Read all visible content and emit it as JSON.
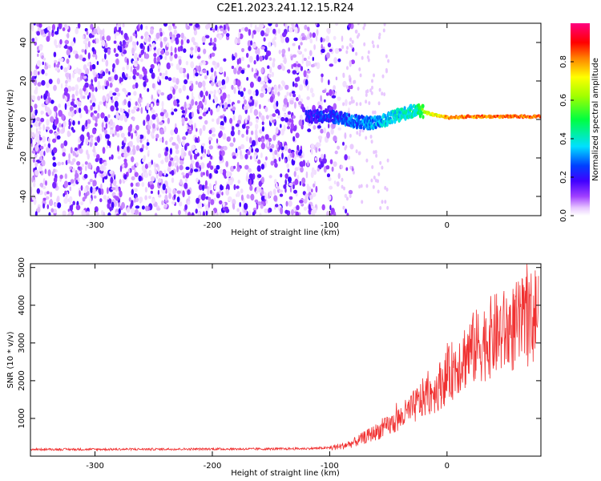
{
  "title": "C2E1.2023.241.12.15.R24",
  "colors": {
    "snr_line": "#f03030",
    "axis": "#000000",
    "background": "#ffffff"
  },
  "chart_data": [
    {
      "type": "heatmap",
      "xlabel": "Height of straight line (km)",
      "ylabel": "Frequency (Hz)",
      "xlim": [
        -355,
        80
      ],
      "ylim": [
        -50,
        50
      ],
      "xticks": [
        -300,
        -200,
        -100,
        0
      ],
      "xtick_labels": [
        "-300",
        "-200",
        "-100",
        "0"
      ],
      "yticks": [
        40,
        20,
        0,
        -20,
        -40
      ],
      "ytick_labels": [
        "40",
        "20",
        "0",
        "-20",
        "-40"
      ],
      "colorbar": {
        "label": "Normalized spectral amplitude",
        "range": [
          0,
          1
        ],
        "ticks": [
          0.0,
          0.2,
          0.4,
          0.6,
          0.8
        ],
        "tick_labels": [
          "0.0",
          "0.2",
          "0.4",
          "0.6",
          "0.8"
        ],
        "colormap": "rainbow (white-violet-blue-cyan-green-yellow-red-magenta)"
      },
      "features": {
        "noise_region_x": [
          -355,
          -90
        ],
        "noise_amplitude": "0.0-0.2",
        "signal_line": [
          {
            "x": -120,
            "freq_hz": 1.5,
            "amplitude": 0.25
          },
          {
            "x": -100,
            "freq_hz": 2.0,
            "amplitude": 0.3
          },
          {
            "x": -80,
            "freq_hz": -1.0,
            "amplitude": 0.35
          },
          {
            "x": -60,
            "freq_hz": -2.0,
            "amplitude": 0.4
          },
          {
            "x": -40,
            "freq_hz": 2.5,
            "amplitude": 0.45
          },
          {
            "x": -25,
            "freq_hz": 5.0,
            "amplitude": 0.5
          },
          {
            "x": -15,
            "freq_hz": 3.0,
            "amplitude": 0.75
          },
          {
            "x": 0,
            "freq_hz": 1.0,
            "amplitude": 0.85
          },
          {
            "x": 20,
            "freq_hz": 1.5,
            "amplitude": 0.9
          },
          {
            "x": 50,
            "freq_hz": 1.5,
            "amplitude": 0.9
          },
          {
            "x": 80,
            "freq_hz": 1.5,
            "amplitude": 0.9
          }
        ]
      }
    },
    {
      "type": "line",
      "xlabel": "Height of straight line (km)",
      "ylabel": "SNR (10 * v/v)",
      "xlim": [
        -355,
        80
      ],
      "ylim": [
        0,
        5100
      ],
      "xticks": [
        -300,
        -200,
        -100,
        0
      ],
      "xtick_labels": [
        "-300",
        "-200",
        "-100",
        "0"
      ],
      "yticks": [
        1000,
        2000,
        3000,
        4000,
        5000
      ],
      "ytick_labels": [
        "1000",
        "2000",
        "3000",
        "4000",
        "5000"
      ],
      "series": [
        {
          "x": [
            -355,
            -300,
            -250,
            -200,
            -150,
            -120,
            -100,
            -90,
            -80,
            -70,
            -60,
            -50,
            -40,
            -30,
            -20,
            -10,
            0,
            10,
            20,
            30,
            40,
            50,
            60,
            70,
            78
          ],
          "values": [
            180,
            180,
            185,
            190,
            190,
            200,
            220,
            260,
            350,
            500,
            650,
            800,
            1000,
            1250,
            1550,
            1750,
            2100,
            2500,
            2800,
            3000,
            3200,
            3300,
            3450,
            3600,
            3900
          ]
        }
      ]
    }
  ]
}
